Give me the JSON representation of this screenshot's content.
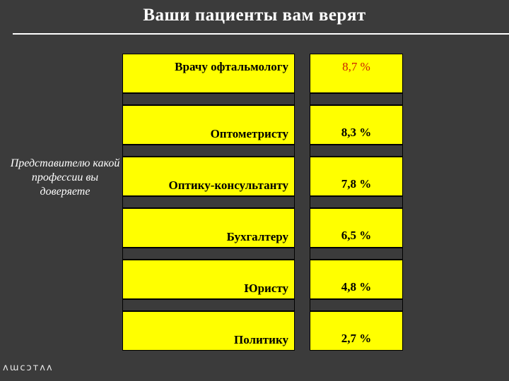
{
  "slide": {
    "title": "Ваши пациенты вам верят",
    "question": "Представителю какой профессии вы доверяете"
  },
  "table": {
    "rows": [
      {
        "profession": "Врачу офтальмологу",
        "value": "8,7 %",
        "highlight": true
      },
      {
        "profession": "Оптометристу",
        "value": "8,3 %",
        "highlight": false
      },
      {
        "profession": "Оптику-консультанту",
        "value": "7,8 %",
        "highlight": false
      },
      {
        "profession": "Бухгалтеру",
        "value": "6,5 %",
        "highlight": false
      },
      {
        "profession": "Юристу",
        "value": "4,8 %",
        "highlight": false
      },
      {
        "profession": "Политику",
        "value": "2,7 %",
        "highlight": false
      }
    ]
  },
  "logo": {
    "text": "ʌɯcɔᴛʌʌ"
  },
  "colors": {
    "background": "#3b3b3b",
    "cell_fill": "#ffff00",
    "highlight_text": "#cc2200",
    "text_light": "#ffffff"
  }
}
